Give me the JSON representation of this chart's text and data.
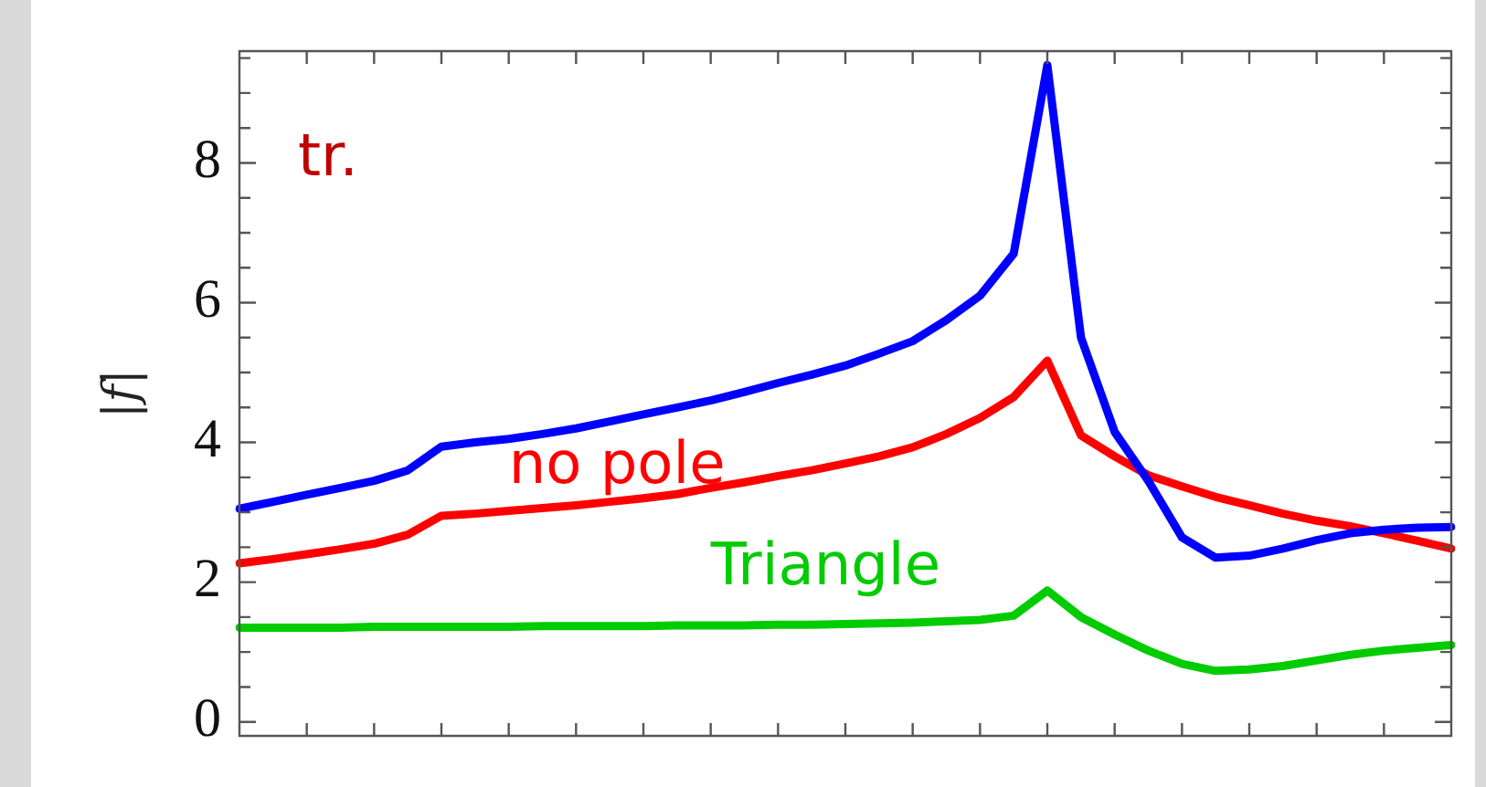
{
  "chart_data": {
    "type": "line",
    "ylabel": "|f|",
    "annotations": [
      "tr."
    ],
    "categories": [
      null,
      null,
      null,
      null,
      null,
      null,
      null,
      null,
      null,
      null,
      null,
      null,
      null,
      null,
      null,
      null,
      null,
      null,
      null,
      null,
      null,
      null,
      null,
      null,
      null,
      null,
      null,
      null,
      null,
      null,
      null,
      null,
      null,
      null,
      null,
      null,
      null
    ],
    "ylim": [
      -0.2,
      9.6
    ],
    "yticks": [
      0,
      {
        "value": 0.5,
        "label": null
      },
      {
        "value": 1,
        "label": null
      },
      {
        "value": 1.5,
        "label": null
      },
      2,
      {
        "value": 2.5,
        "label": null
      },
      {
        "value": 3,
        "label": null
      },
      {
        "value": 3.5,
        "label": null
      },
      4,
      {
        "value": 4.5,
        "label": null
      },
      {
        "value": 5,
        "label": null
      },
      {
        "value": 5.5,
        "label": null
      },
      6,
      {
        "value": 6.5,
        "label": null
      },
      {
        "value": 7,
        "label": null
      },
      {
        "value": 7.5,
        "label": null
      },
      8,
      {
        "value": 8.5,
        "label": null
      },
      {
        "value": 9,
        "label": null
      },
      {
        "value": 9.5,
        "label": null
      }
    ],
    "tick_labels": "y",
    "grid": false,
    "legend": false,
    "marker": "none",
    "line_style": "solid",
    "series": [
      {
        "color": "#0000ff",
        "values": [
          3.05,
          3.15,
          3.25,
          3.35,
          3.45,
          3.6,
          3.94,
          4.0,
          4.05,
          4.12,
          4.2,
          4.3,
          4.4,
          4.5,
          4.6,
          4.72,
          4.85,
          4.97,
          5.1,
          5.27,
          5.45,
          5.75,
          6.1,
          6.7,
          9.4,
          5.5,
          4.15,
          3.45,
          2.64,
          2.35,
          2.38,
          2.48,
          2.6,
          2.7,
          2.75,
          2.78,
          2.79
        ]
      },
      {
        "name": "no pole",
        "color": "#ff0000",
        "values": [
          2.27,
          2.33,
          2.4,
          2.47,
          2.55,
          2.68,
          2.95,
          2.98,
          3.02,
          3.06,
          3.1,
          3.15,
          3.2,
          3.26,
          3.35,
          3.43,
          3.52,
          3.6,
          3.7,
          3.8,
          3.93,
          4.12,
          4.35,
          4.65,
          5.17,
          4.1,
          3.8,
          3.53,
          3.37,
          3.22,
          3.1,
          2.98,
          2.88,
          2.8,
          2.7,
          2.59,
          2.48
        ]
      },
      {
        "name": "Triangle",
        "color": "#00cc00",
        "values": [
          1.35,
          1.35,
          1.35,
          1.35,
          1.36,
          1.36,
          1.36,
          1.36,
          1.36,
          1.37,
          1.37,
          1.37,
          1.37,
          1.38,
          1.38,
          1.38,
          1.39,
          1.39,
          1.4,
          1.41,
          1.42,
          1.44,
          1.46,
          1.52,
          1.88,
          1.5,
          1.25,
          1.02,
          0.83,
          0.73,
          0.75,
          0.8,
          0.88,
          0.96,
          1.02,
          1.06,
          1.1
        ]
      }
    ]
  }
}
